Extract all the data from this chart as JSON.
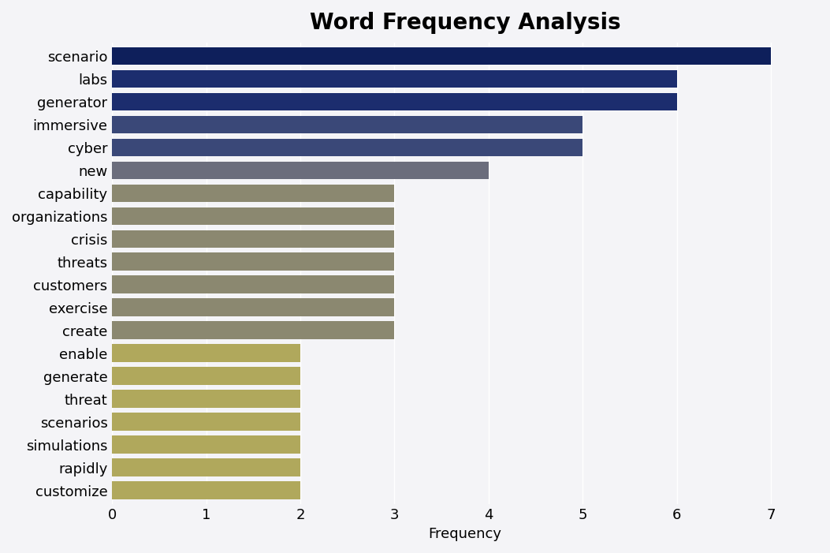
{
  "categories": [
    "scenario",
    "labs",
    "generator",
    "immersive",
    "cyber",
    "new",
    "capability",
    "organizations",
    "crisis",
    "threats",
    "customers",
    "exercise",
    "create",
    "enable",
    "generate",
    "threat",
    "scenarios",
    "simulations",
    "rapidly",
    "customize"
  ],
  "values": [
    7,
    6,
    6,
    5,
    5,
    4,
    3,
    3,
    3,
    3,
    3,
    3,
    3,
    2,
    2,
    2,
    2,
    2,
    2,
    2
  ],
  "bar_colors": [
    "#0e1f5b",
    "#1c2d6e",
    "#1c2d6e",
    "#3a4878",
    "#3a4878",
    "#6b6d7c",
    "#8b8870",
    "#8b8870",
    "#8b8870",
    "#8b8870",
    "#8b8870",
    "#8b8870",
    "#8b8870",
    "#b0a85c",
    "#b0a85c",
    "#b0a85c",
    "#b0a85c",
    "#b0a85c",
    "#b0a85c",
    "#b0a85c"
  ],
  "title": "Word Frequency Analysis",
  "xlabel": "Frequency",
  "xlim": [
    0,
    7.5
  ],
  "xticks": [
    0,
    1,
    2,
    3,
    4,
    5,
    6,
    7
  ],
  "title_fontsize": 20,
  "label_fontsize": 13,
  "tick_fontsize": 13,
  "background_color": "#f4f4f7",
  "bar_height": 0.78
}
